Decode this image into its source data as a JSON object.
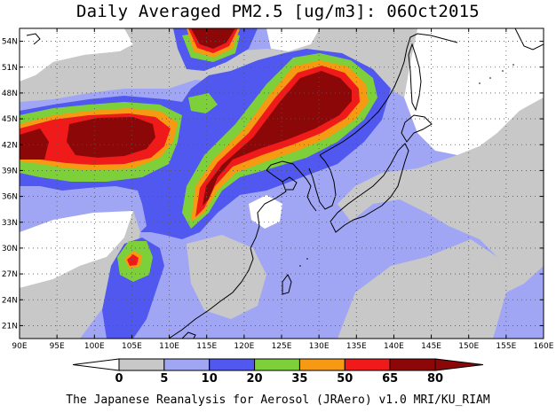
{
  "title": "Daily Averaged PM2.5 [ug/m3]: 06Oct2015",
  "credit": "The Japanese Reanalysis for Aerosol (JRAero) v1.0 MRI/KU_RIAM",
  "map": {
    "lon_range": [
      90,
      160
    ],
    "lat_range": [
      19.5,
      55.5
    ],
    "lat_ticks": [
      {
        "value": 21,
        "label": "21N"
      },
      {
        "value": 24,
        "label": "24N"
      },
      {
        "value": 27,
        "label": "27N"
      },
      {
        "value": 30,
        "label": "30N"
      },
      {
        "value": 33,
        "label": "33N"
      },
      {
        "value": 36,
        "label": "36N"
      },
      {
        "value": 39,
        "label": "39N"
      },
      {
        "value": 42,
        "label": "42N"
      },
      {
        "value": 45,
        "label": "45N"
      },
      {
        "value": 48,
        "label": "48N"
      },
      {
        "value": 51,
        "label": "51N"
      },
      {
        "value": 54,
        "label": "54N"
      }
    ],
    "lon_ticks": [
      {
        "value": 90,
        "label": "90E"
      },
      {
        "value": 95,
        "label": "95E"
      },
      {
        "value": 100,
        "label": "100E"
      },
      {
        "value": 105,
        "label": "105E"
      },
      {
        "value": 110,
        "label": "110E"
      },
      {
        "value": 115,
        "label": "115E"
      },
      {
        "value": 120,
        "label": "120E"
      },
      {
        "value": 125,
        "label": "125E"
      },
      {
        "value": 130,
        "label": "130E"
      },
      {
        "value": 135,
        "label": "135E"
      },
      {
        "value": 140,
        "label": "140E"
      },
      {
        "value": 145,
        "label": "145E"
      },
      {
        "value": 150,
        "label": "150E"
      },
      {
        "value": 155,
        "label": "155E"
      },
      {
        "value": 160,
        "label": "160E"
      }
    ]
  },
  "colorbar": {
    "levels": [
      "0",
      "5",
      "10",
      "20",
      "35",
      "50",
      "65",
      "80"
    ],
    "colors": [
      "#ffffff",
      "#c8c8c8",
      "#a0a6f4",
      "#5058f0",
      "#7ed03a",
      "#f59a12",
      "#f01a1a",
      "#8c0808"
    ],
    "under_color": "#ffffff",
    "over_color": "#8c0808"
  },
  "fill_colors": {
    "ocean_gray": "#c8c8c8",
    "light_blue": "#a0a6f4",
    "blue": "#5058f0",
    "green": "#7ed03a",
    "orange": "#f59a12",
    "red": "#f01a1a",
    "dark_red": "#8c0808"
  }
}
